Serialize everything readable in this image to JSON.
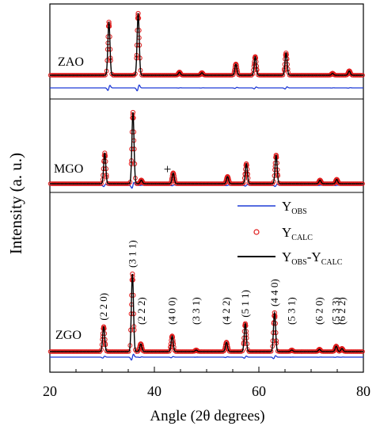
{
  "chart_data": {
    "type": "line",
    "title": "",
    "xlabel": "Angle (2θ degrees)",
    "ylabel": "Intensity (a. u.)",
    "xlim": [
      20,
      80
    ],
    "xticks": [
      20,
      40,
      60,
      80
    ],
    "xtick_labels": [
      "20",
      "40",
      "60",
      "80"
    ],
    "legend": {
      "placement": "bottom-right-panel",
      "entries": [
        {
          "base": "Y",
          "sub": "OBS",
          "sub2": "",
          "marker": "line",
          "color": "#1f3bd6"
        },
        {
          "base": "Y",
          "sub": "CALC",
          "sub2": "",
          "marker": "circle",
          "color": "#e01b1b"
        },
        {
          "base": "Y",
          "sub": "OBS",
          "sep": "-Y",
          "sub2": "CALC",
          "marker": "line",
          "color": "#000000"
        }
      ]
    },
    "colors": {
      "obs": "#1f3bd6",
      "calc": "#e01b1b",
      "diff": "#000000"
    },
    "panels": [
      {
        "name": "ZAO",
        "peaks": [
          [
            31.3,
            0.86
          ],
          [
            36.9,
            1.0
          ],
          [
            44.8,
            0.05
          ],
          [
            49.1,
            0.04
          ],
          [
            55.6,
            0.18
          ],
          [
            59.3,
            0.3
          ],
          [
            65.2,
            0.36
          ],
          [
            74.1,
            0.03
          ],
          [
            77.3,
            0.07
          ]
        ]
      },
      {
        "name": "MGO",
        "peaks": [
          [
            30.5,
            0.43
          ],
          [
            35.9,
            1.0
          ],
          [
            37.5,
            0.05
          ],
          [
            43.6,
            0.15
          ],
          [
            54.0,
            0.1
          ],
          [
            57.6,
            0.28
          ],
          [
            63.3,
            0.4
          ],
          [
            71.7,
            0.05
          ],
          [
            74.9,
            0.06
          ]
        ]
      },
      {
        "name": "ZGO",
        "peaks": [
          [
            30.3,
            0.32
          ],
          [
            35.8,
            1.0
          ],
          [
            37.4,
            0.1
          ],
          [
            43.4,
            0.2
          ],
          [
            48.0,
            0.02
          ],
          [
            53.8,
            0.12
          ],
          [
            57.4,
            0.36
          ],
          [
            63.0,
            0.5
          ],
          [
            66.3,
            0.02
          ],
          [
            71.6,
            0.03
          ],
          [
            74.8,
            0.07
          ],
          [
            75.9,
            0.04
          ]
        ],
        "peak_labels": [
          {
            "text": "(2 2 0)",
            "x": 30.3
          },
          {
            "text": "(3 1 1)",
            "x": 35.8
          },
          {
            "text": "(2 2 2)",
            "x": 37.6
          },
          {
            "text": "(4 0 0)",
            "x": 43.4
          },
          {
            "text": "(3 3 1)",
            "x": 48.0
          },
          {
            "text": "(4 2 2)",
            "x": 53.8
          },
          {
            "text": "(5 1 1)",
            "x": 57.4
          },
          {
            "text": "(4 4 0)",
            "x": 63.0
          },
          {
            "text": "(5 3 1)",
            "x": 66.3
          },
          {
            "text": "(6 2 0)",
            "x": 71.6
          },
          {
            "text": "(5 3 3)",
            "x": 74.8
          },
          {
            "text": "(6 2 2)",
            "x": 75.9
          }
        ]
      }
    ],
    "annotations": [
      {
        "text": "+",
        "panel": "MGO",
        "x": 42.5
      }
    ]
  }
}
